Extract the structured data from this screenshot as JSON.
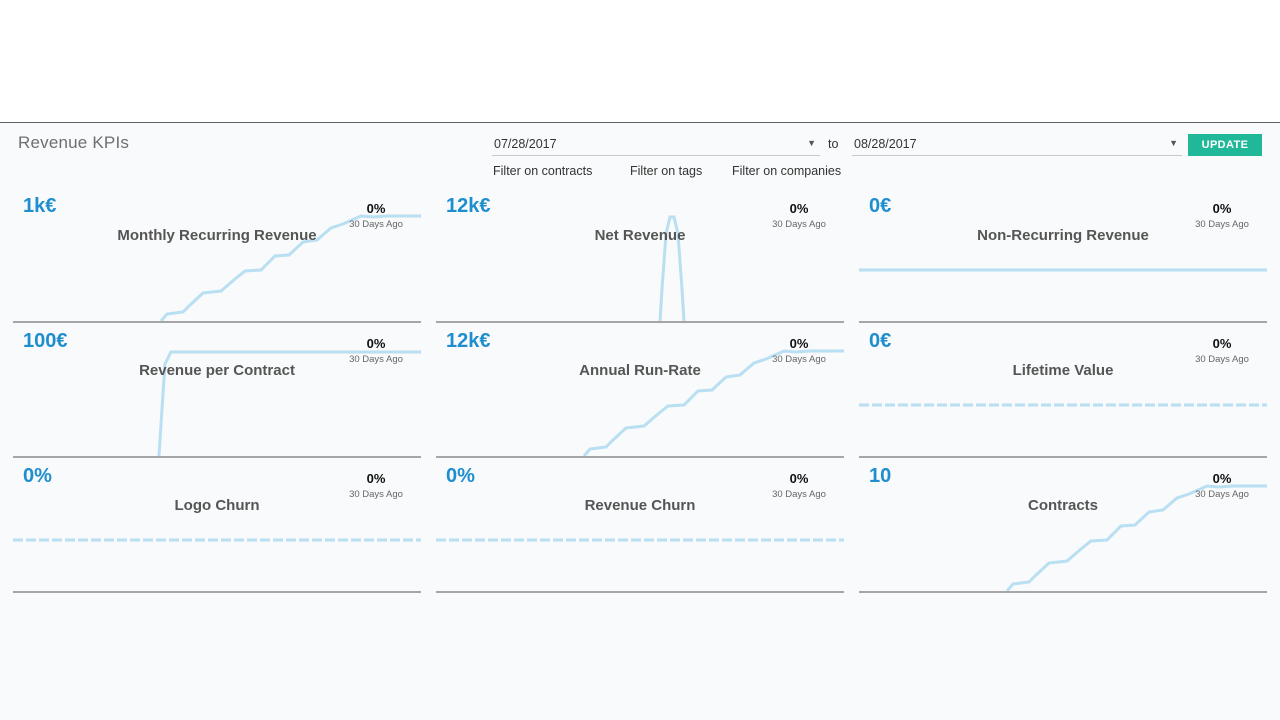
{
  "header": {
    "title": "Revenue KPIs",
    "date_from": "07/28/2017",
    "date_to": "08/28/2017",
    "to_label": "to",
    "update_label": "UPDATE",
    "filters": [
      "Filter on contracts",
      "Filter on tags",
      "Filter on companies"
    ]
  },
  "colors": {
    "accent": "#1f8ecf",
    "button": "#21b799",
    "sparkline": "#b9dff2"
  },
  "kpis": [
    {
      "value": "1k€",
      "label": "Monthly Recurring Revenue",
      "change": "0%",
      "period": "30 Days Ago",
      "trend": "steps-up"
    },
    {
      "value": "12k€",
      "label": "Net Revenue",
      "change": "0%",
      "period": "30 Days Ago",
      "trend": "spike"
    },
    {
      "value": "0€",
      "label": "Non-Recurring Revenue",
      "change": "0%",
      "period": "30 Days Ago",
      "trend": "flat"
    },
    {
      "value": "100€",
      "label": "Revenue per Contract",
      "change": "0%",
      "period": "30 Days Ago",
      "trend": "jump"
    },
    {
      "value": "12k€",
      "label": "Annual Run-Rate",
      "change": "0%",
      "period": "30 Days Ago",
      "trend": "steps-up"
    },
    {
      "value": "0€",
      "label": "Lifetime Value",
      "change": "0%",
      "period": "30 Days Ago",
      "trend": "flat"
    },
    {
      "value": "0%",
      "label": "Logo Churn",
      "change": "0%",
      "period": "30 Days Ago",
      "trend": "flat"
    },
    {
      "value": "0%",
      "label": "Revenue Churn",
      "change": "0%",
      "period": "30 Days Ago",
      "trend": "flat"
    },
    {
      "value": "10",
      "label": "Contracts",
      "change": "0%",
      "period": "30 Days Ago",
      "trend": "steps-up"
    }
  ]
}
